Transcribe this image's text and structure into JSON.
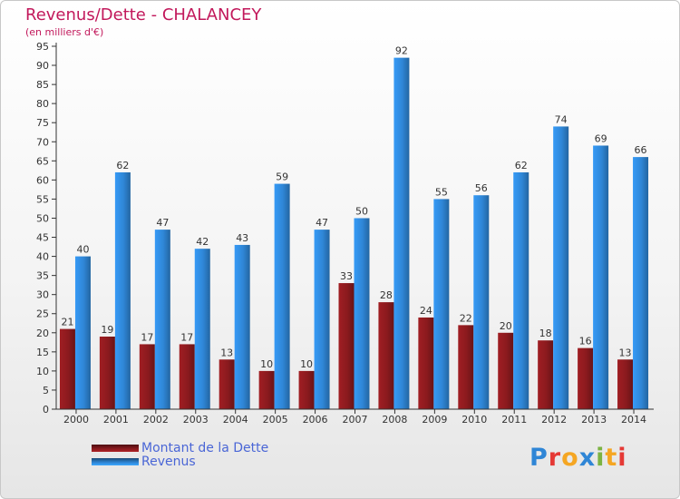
{
  "title": "Revenus/Dette - CHALANCEY",
  "subtitle": "(en milliers d'€)",
  "colors": {
    "dette": "#8b1a1e",
    "revenus": "#2f86d6",
    "title": "#c2185b",
    "legend_text": "#4a66d6"
  },
  "legend": {
    "items": [
      {
        "label": "Montant de la Dette",
        "color": "#8b1a1e"
      },
      {
        "label": "Revenus",
        "color": "#2f86d6"
      }
    ]
  },
  "logo": {
    "letters": [
      "P",
      "r",
      "o",
      "x",
      "i",
      "t",
      "i"
    ],
    "colors": [
      "#2f86d6",
      "#e53935",
      "#f5a623",
      "#2f86d6",
      "#7cb342",
      "#f5a623",
      "#e53935"
    ]
  },
  "chart_data": {
    "type": "bar",
    "title": "Revenus/Dette - CHALANCEY",
    "subtitle": "(en milliers d'€)",
    "categories": [
      "2000",
      "2001",
      "2002",
      "2003",
      "2004",
      "2005",
      "2006",
      "2007",
      "2008",
      "2009",
      "2010",
      "2011",
      "2012",
      "2013",
      "2014"
    ],
    "series": [
      {
        "name": "Montant de la Dette",
        "color": "#8b1a1e",
        "values": [
          21,
          19,
          17,
          17,
          13,
          10,
          10,
          33,
          28,
          24,
          22,
          20,
          18,
          16,
          13
        ]
      },
      {
        "name": "Revenus",
        "color": "#2f86d6",
        "values": [
          40,
          62,
          47,
          42,
          43,
          59,
          47,
          50,
          92,
          55,
          56,
          62,
          74,
          69,
          66
        ]
      }
    ],
    "ylim": [
      0,
      95
    ],
    "ytick_step": 5,
    "grid": false,
    "legend_position": "bottom-left"
  }
}
